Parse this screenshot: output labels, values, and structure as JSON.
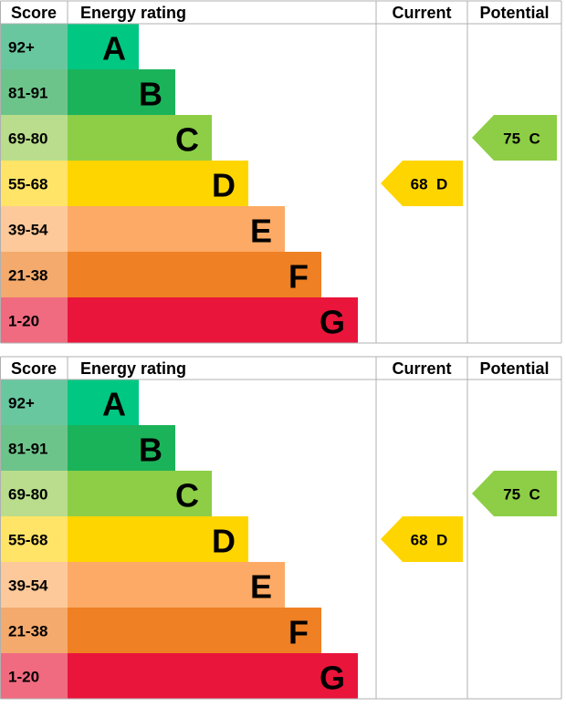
{
  "chart_data": [
    {
      "type": "bar",
      "headers": {
        "score": "Score",
        "rating": "Energy rating",
        "current": "Current",
        "potential": "Potential"
      },
      "bands": [
        {
          "score": "92+",
          "letter": "A",
          "color": "#00c781",
          "score_bg": "#69c7a0"
        },
        {
          "score": "81-91",
          "letter": "B",
          "color": "#1bb35a",
          "score_bg": "#6dc48b"
        },
        {
          "score": "69-80",
          "letter": "C",
          "color": "#8dce46",
          "score_bg": "#b9dd8c"
        },
        {
          "score": "55-68",
          "letter": "D",
          "color": "#ffd500",
          "score_bg": "#ffe467"
        },
        {
          "score": "39-54",
          "letter": "E",
          "color": "#fcaa65",
          "score_bg": "#fdc99a"
        },
        {
          "score": "21-38",
          "letter": "F",
          "color": "#ef8023",
          "score_bg": "#f4aa6c"
        },
        {
          "score": "1-20",
          "letter": "G",
          "color": "#e9153b",
          "score_bg": "#f06a80"
        }
      ],
      "current": {
        "value": 68,
        "letter": "D",
        "label": "68  D",
        "color": "#ffd500"
      },
      "potential": {
        "value": 75,
        "letter": "C",
        "label": "75  C",
        "color": "#8dce46"
      }
    },
    {
      "type": "bar",
      "headers": {
        "score": "Score",
        "rating": "Energy rating",
        "current": "Current",
        "potential": "Potential"
      },
      "bands": [
        {
          "score": "92+",
          "letter": "A",
          "color": "#00c781",
          "score_bg": "#69c7a0"
        },
        {
          "score": "81-91",
          "letter": "B",
          "color": "#1bb35a",
          "score_bg": "#6dc48b"
        },
        {
          "score": "69-80",
          "letter": "C",
          "color": "#8dce46",
          "score_bg": "#b9dd8c"
        },
        {
          "score": "55-68",
          "letter": "D",
          "color": "#ffd500",
          "score_bg": "#ffe467"
        },
        {
          "score": "39-54",
          "letter": "E",
          "color": "#fcaa65",
          "score_bg": "#fdc99a"
        },
        {
          "score": "21-38",
          "letter": "F",
          "color": "#ef8023",
          "score_bg": "#f4aa6c"
        },
        {
          "score": "1-20",
          "letter": "G",
          "color": "#e9153b",
          "score_bg": "#f06a80"
        }
      ],
      "current": {
        "value": 68,
        "letter": "D",
        "label": "68  D",
        "color": "#ffd500"
      },
      "potential": {
        "value": 75,
        "letter": "C",
        "label": "75  C",
        "color": "#8dce46"
      }
    }
  ]
}
